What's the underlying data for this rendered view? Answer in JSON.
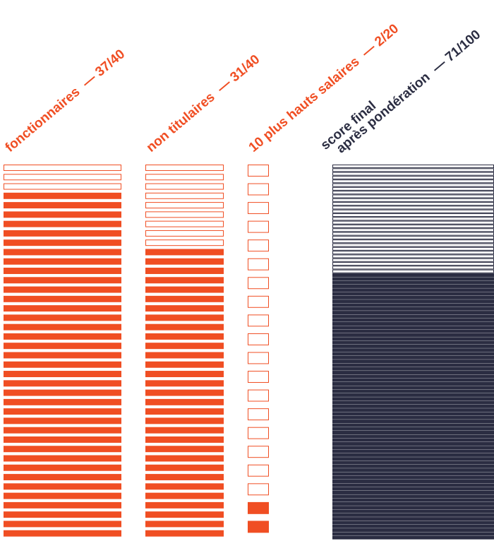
{
  "chart_data": [
    {
      "type": "bar",
      "label": "fonctionnaires",
      "score_text": "37/40",
      "value": 37,
      "max": 40,
      "color": "#f04e23"
    },
    {
      "type": "bar",
      "label": "non titulaires",
      "score_text": "31/40",
      "value": 31,
      "max": 40,
      "color": "#f04e23"
    },
    {
      "type": "bar",
      "label": "10 plus hauts salaires",
      "score_text": "2/20",
      "value": 2,
      "max": 20,
      "color": "#f04e23"
    },
    {
      "type": "bar",
      "label_line1": "score final",
      "label_line2": "après pondération",
      "score_text": "71/100",
      "value": 71,
      "max": 100,
      "color": "#2b2d42"
    }
  ],
  "separator": "—"
}
